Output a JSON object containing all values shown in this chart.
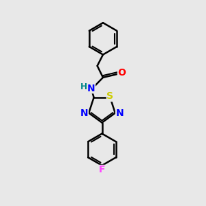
{
  "background_color": "#e8e8e8",
  "bond_color": "#000000",
  "atom_colors": {
    "O": "#ff0000",
    "N": "#0000ff",
    "S": "#cccc00",
    "F": "#ff44ff",
    "H": "#008888",
    "C": "#000000"
  },
  "figsize": [
    3.0,
    3.0
  ],
  "dpi": 100
}
